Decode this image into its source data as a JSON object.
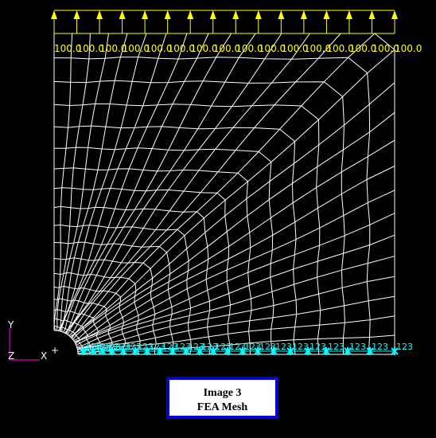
{
  "loads": {
    "labels": [
      "100.0",
      "100.0",
      "100.0",
      "100.0",
      "100.0",
      "100.0",
      "100.0",
      "100.0",
      "100.0",
      "100.0",
      "100.0",
      "100.0",
      "100.0",
      "100.0",
      "100.0",
      "100.0"
    ]
  },
  "constraints": {
    "labels": [
      "123",
      "123",
      "123",
      "123",
      "123",
      "123",
      "123",
      "123",
      "123",
      "123",
      "123",
      "123",
      "123",
      "123",
      "123",
      "123",
      "123",
      "123",
      "123",
      "123",
      "123",
      "123"
    ]
  },
  "triad": {
    "y": "Y",
    "z": "Z",
    "x": "X",
    "origin": "+"
  },
  "caption": {
    "line1": "Image 3",
    "line2": "FEA Mesh"
  }
}
